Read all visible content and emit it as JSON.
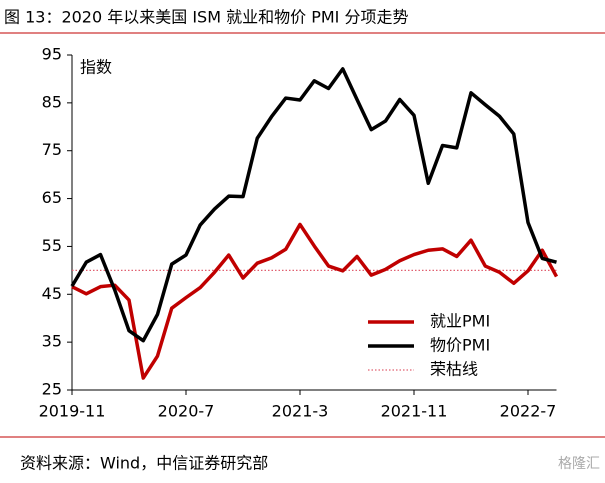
{
  "chart_data": {
    "type": "line",
    "title": "图 13：2020 年以来美国 ISM 就业和物价 PMI 分项走势",
    "y_label": "指数",
    "source": "资料来源：Wind，中信证券研究部",
    "watermark": "格隆汇",
    "categories": [
      "2019-11",
      null,
      null,
      null,
      null,
      null,
      null,
      null,
      "2020-7",
      null,
      null,
      null,
      null,
      null,
      null,
      null,
      "2021-3",
      null,
      null,
      null,
      null,
      null,
      null,
      null,
      "2021-11",
      null,
      null,
      null,
      null,
      null,
      null,
      null,
      "2022-7",
      null,
      null
    ],
    "series": [
      {
        "name": "就业PMI",
        "color": "#c00000",
        "values": [
          46.6,
          45.1,
          46.6,
          46.9,
          43.8,
          27.5,
          32.1,
          42.1,
          44.3,
          46.4,
          49.6,
          53.2,
          48.4,
          51.5,
          52.6,
          54.4,
          59.6,
          55.1,
          50.9,
          49.9,
          52.9,
          49.0,
          50.2,
          52.0,
          53.3,
          54.2,
          54.5,
          52.9,
          56.3,
          50.9,
          49.6,
          47.3,
          49.9,
          54.2,
          48.7
        ]
      },
      {
        "name": "物价PMI",
        "color": "#000000",
        "values": [
          46.7,
          51.7,
          53.3,
          45.9,
          37.4,
          35.3,
          40.8,
          51.3,
          53.2,
          59.5,
          62.8,
          65.5,
          65.4,
          77.6,
          82.1,
          86.0,
          85.6,
          89.6,
          88.0,
          92.1,
          85.7,
          79.4,
          81.2,
          85.7,
          82.4,
          68.2,
          76.1,
          75.6,
          87.1,
          84.6,
          82.2,
          78.5,
          60.0,
          52.5,
          51.7
        ]
      }
    ],
    "reference_line": {
      "name": "荣枯线",
      "value": 50,
      "color": "#e06070"
    },
    "ylim": [
      25,
      95
    ],
    "yticks": [
      25,
      35,
      45,
      55,
      65,
      75,
      85,
      95
    ],
    "legend": "lower right"
  }
}
